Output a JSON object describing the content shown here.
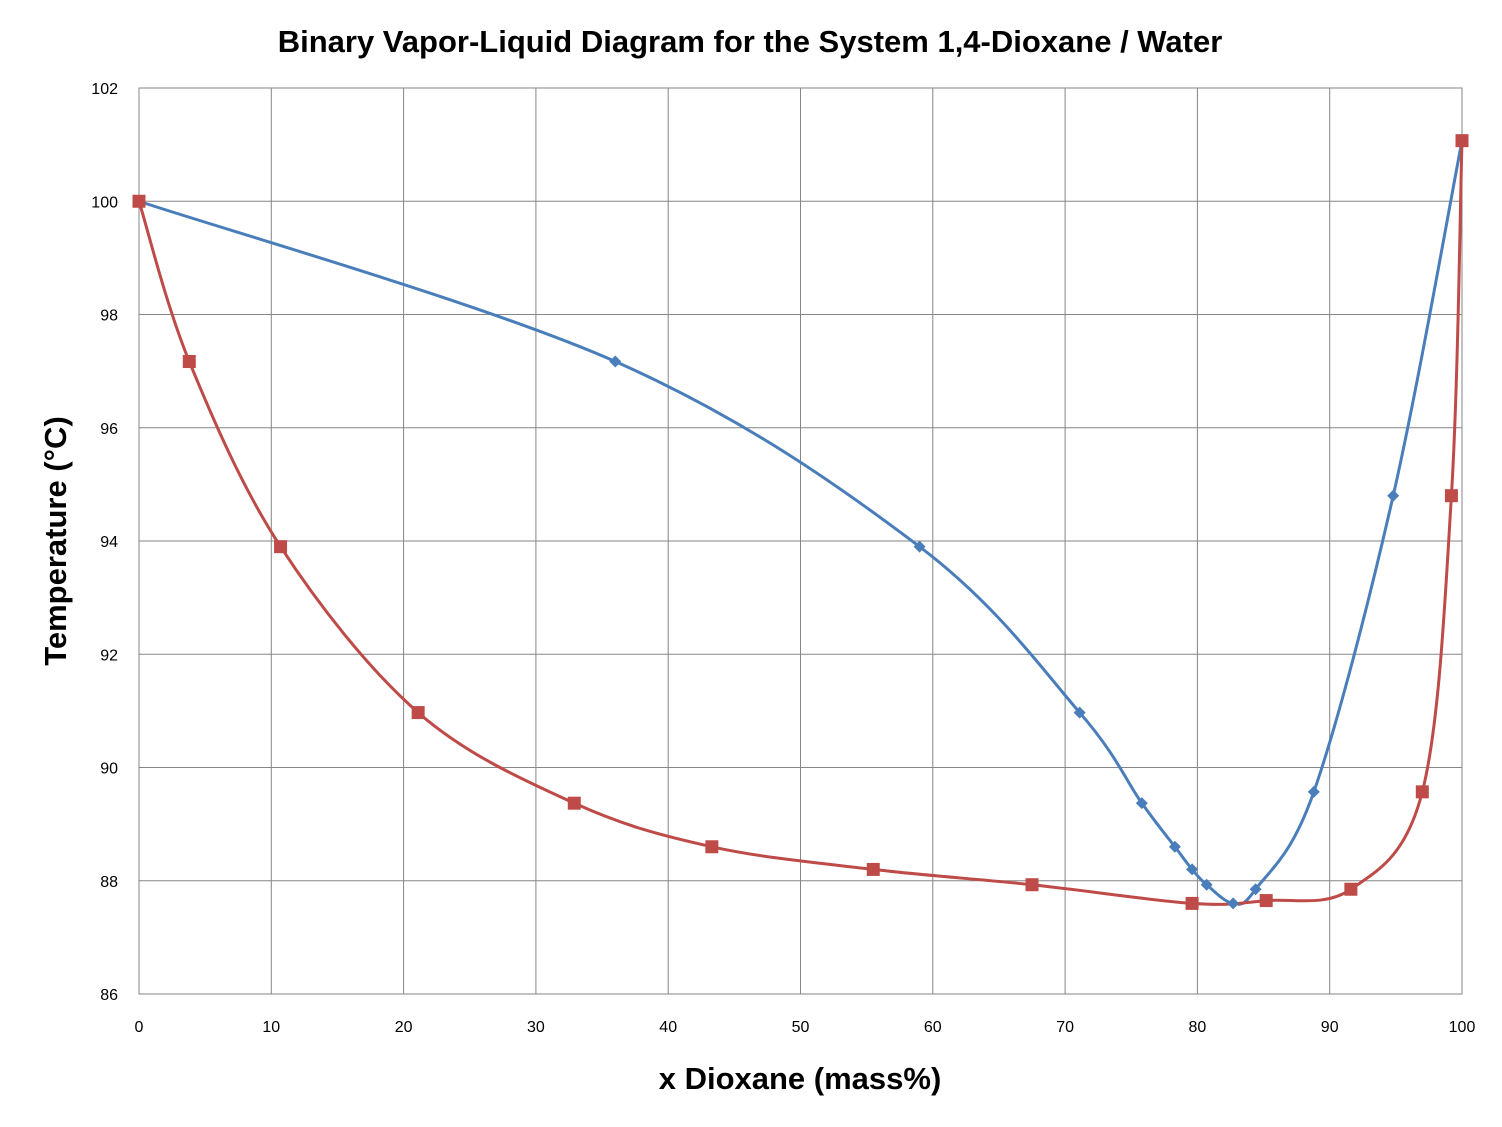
{
  "chart_data": {
    "type": "scatter",
    "title": "Binary Vapor-Liquid Diagram for the System 1,4-Dioxane / Water",
    "xlabel": "x Dioxane (mass%)",
    "ylabel": "Temperature (°C)",
    "xlim": [
      0,
      100
    ],
    "ylim": [
      86,
      102
    ],
    "xticks": [
      0,
      10,
      20,
      30,
      40,
      50,
      60,
      70,
      80,
      90,
      100
    ],
    "yticks": [
      86,
      88,
      90,
      92,
      94,
      96,
      98,
      100,
      102
    ],
    "grid": true,
    "legend": "none",
    "series": [
      {
        "color": "#4A7EBB",
        "marker": "diamond",
        "smooth": true,
        "points": [
          [
            0,
            100.0
          ],
          [
            36.0,
            97.17
          ],
          [
            59.0,
            93.9
          ],
          [
            71.1,
            90.97
          ],
          [
            75.8,
            89.37
          ],
          [
            78.3,
            88.6
          ],
          [
            79.6,
            88.2
          ],
          [
            80.7,
            87.93
          ],
          [
            82.7,
            87.6
          ],
          [
            84.4,
            87.85
          ],
          [
            88.8,
            89.57
          ],
          [
            94.8,
            94.8
          ],
          [
            100,
            101.07
          ]
        ]
      },
      {
        "color": "#BE4B48",
        "marker": "square",
        "smooth": true,
        "points": [
          [
            0,
            100.0
          ],
          [
            3.8,
            97.17
          ],
          [
            10.7,
            93.9
          ],
          [
            21.1,
            90.97
          ],
          [
            32.9,
            89.37
          ],
          [
            43.3,
            88.6
          ],
          [
            55.5,
            88.2
          ],
          [
            67.5,
            87.93
          ],
          [
            79.6,
            87.6
          ],
          [
            85.2,
            87.65
          ],
          [
            91.6,
            87.85
          ],
          [
            97.0,
            89.57
          ],
          [
            99.2,
            94.8
          ],
          [
            100,
            101.07
          ]
        ]
      }
    ]
  }
}
